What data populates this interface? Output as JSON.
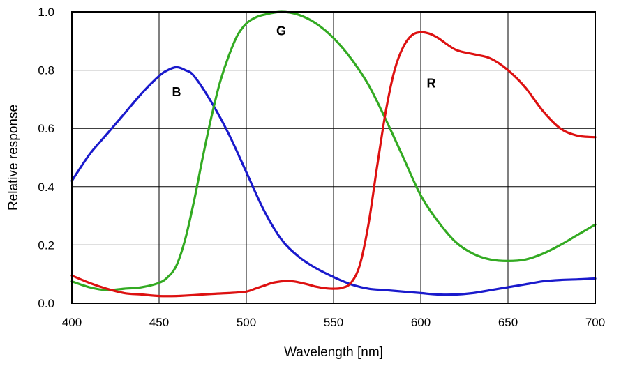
{
  "chart_data": {
    "type": "line",
    "title": "",
    "xlabel": "Wavelength [nm]",
    "ylabel": "Relative response",
    "xlim": [
      400,
      700
    ],
    "ylim": [
      0,
      1.0
    ],
    "xticks": [
      400,
      450,
      500,
      550,
      600,
      650,
      700
    ],
    "xtick_labels": [
      "400",
      "450",
      "500",
      "550",
      "600",
      "650",
      "700"
    ],
    "yticks": [
      0,
      0.2,
      0.4,
      0.6,
      0.8,
      1.0
    ],
    "ytick_labels": [
      "0.0",
      "0.2",
      "0.4",
      "0.6",
      "0.8",
      "1.0"
    ],
    "grid": true,
    "legend": "none",
    "series": [
      {
        "name": "B",
        "color": "#1a1acc",
        "x": [
          400,
          410,
          420,
          430,
          440,
          450,
          455,
          460,
          465,
          470,
          480,
          490,
          500,
          510,
          520,
          530,
          540,
          550,
          560,
          570,
          580,
          590,
          600,
          610,
          620,
          630,
          640,
          650,
          660,
          670,
          680,
          690,
          700
        ],
        "y": [
          0.42,
          0.51,
          0.58,
          0.65,
          0.72,
          0.78,
          0.8,
          0.81,
          0.8,
          0.78,
          0.69,
          0.58,
          0.45,
          0.32,
          0.22,
          0.16,
          0.12,
          0.09,
          0.065,
          0.05,
          0.045,
          0.04,
          0.035,
          0.03,
          0.03,
          0.035,
          0.045,
          0.055,
          0.065,
          0.075,
          0.08,
          0.082,
          0.085
        ],
        "label_at": [
          460,
          0.71
        ]
      },
      {
        "name": "G",
        "color": "#33aa22",
        "x": [
          400,
          410,
          420,
          430,
          440,
          450,
          455,
          460,
          465,
          470,
          475,
          480,
          485,
          490,
          495,
          500,
          505,
          510,
          520,
          530,
          540,
          550,
          560,
          570,
          580,
          590,
          600,
          610,
          620,
          630,
          640,
          650,
          660,
          670,
          680,
          690,
          700
        ],
        "y": [
          0.075,
          0.055,
          0.045,
          0.05,
          0.055,
          0.07,
          0.09,
          0.13,
          0.22,
          0.35,
          0.5,
          0.64,
          0.76,
          0.85,
          0.92,
          0.96,
          0.98,
          0.99,
          1.0,
          0.99,
          0.96,
          0.91,
          0.84,
          0.75,
          0.63,
          0.5,
          0.37,
          0.28,
          0.21,
          0.17,
          0.15,
          0.145,
          0.15,
          0.17,
          0.2,
          0.235,
          0.27
        ],
        "label_at": [
          520,
          0.92
        ]
      },
      {
        "name": "R",
        "color": "#dd1111",
        "x": [
          400,
          410,
          420,
          430,
          440,
          450,
          460,
          470,
          480,
          490,
          500,
          505,
          510,
          515,
          520,
          525,
          530,
          535,
          540,
          545,
          550,
          555,
          560,
          565,
          570,
          575,
          580,
          585,
          590,
          595,
          600,
          605,
          610,
          620,
          630,
          640,
          650,
          660,
          670,
          680,
          690,
          700
        ],
        "y": [
          0.095,
          0.07,
          0.05,
          0.035,
          0.03,
          0.025,
          0.025,
          0.028,
          0.032,
          0.035,
          0.04,
          0.05,
          0.06,
          0.07,
          0.075,
          0.076,
          0.072,
          0.065,
          0.057,
          0.052,
          0.05,
          0.053,
          0.07,
          0.13,
          0.27,
          0.47,
          0.66,
          0.8,
          0.88,
          0.92,
          0.93,
          0.925,
          0.91,
          0.87,
          0.855,
          0.84,
          0.8,
          0.74,
          0.66,
          0.6,
          0.575,
          0.57
        ],
        "label_at": [
          606,
          0.74
        ]
      }
    ]
  }
}
